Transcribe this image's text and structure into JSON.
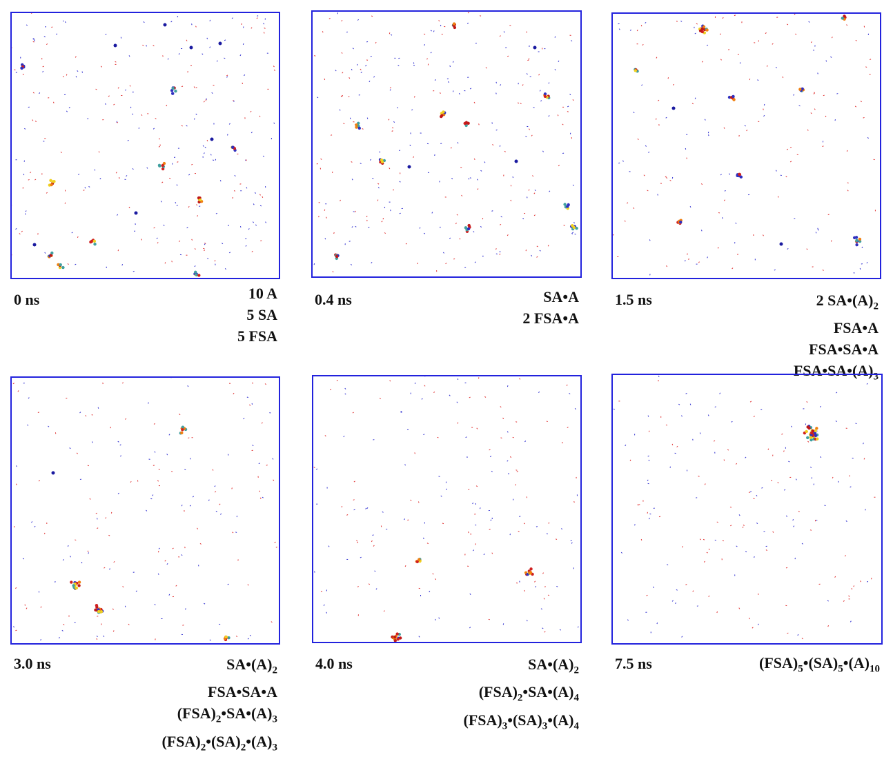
{
  "panels": [
    {
      "time": "0 ns",
      "composition": [
        [
          "10 A"
        ],
        [
          "5 SA"
        ],
        [
          "5 FSA"
        ]
      ]
    },
    {
      "time": "0.4 ns",
      "composition": [
        [
          "SA•A"
        ],
        [
          "2 FSA•A"
        ]
      ]
    },
    {
      "time": "1.5 ns",
      "composition": [
        [
          "2 SA•(A)",
          "2"
        ],
        [
          "FSA•A"
        ],
        [
          "FSA•SA•A"
        ],
        [
          "FSA•SA•(A)",
          "3"
        ]
      ]
    },
    {
      "time": "3.0 ns",
      "composition": [
        [
          "SA•(A)",
          "2"
        ],
        [
          "FSA•SA•A"
        ],
        [
          "(FSA)",
          "2",
          "•SA•(A)",
          "3"
        ],
        [
          "(FSA)",
          "2",
          "•(SA)",
          "2",
          "•(A)",
          "3"
        ]
      ]
    },
    {
      "time": "4.0 ns",
      "composition": [
        [
          "SA•(A)",
          "2"
        ],
        [
          "(FSA)",
          "2",
          "•SA•(A)",
          "4"
        ],
        [
          "(FSA)",
          "3",
          "•(SA)",
          "3",
          "•(A)",
          "4"
        ]
      ]
    },
    {
      "time": "7.5 ns",
      "composition": [
        [
          "(FSA)",
          "5",
          "•(SA)",
          "5",
          "•(A)",
          "10"
        ]
      ]
    }
  ]
}
